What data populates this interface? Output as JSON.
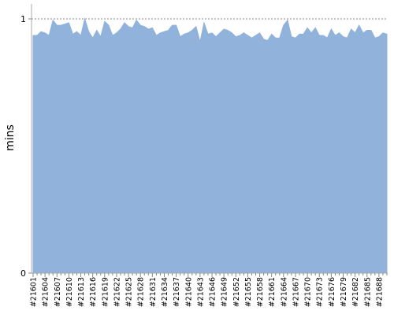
{
  "chart_data": {
    "type": "area",
    "y_label": "mins",
    "categories": [
      "#21601",
      null,
      null,
      "#21604",
      null,
      null,
      "#21607",
      null,
      null,
      "#21610",
      null,
      null,
      "#21613",
      null,
      null,
      "#21616",
      null,
      null,
      "#21619",
      null,
      null,
      "#21622",
      null,
      null,
      "#21625",
      null,
      null,
      "#21628",
      null,
      null,
      "#21631",
      null,
      null,
      "#21634",
      null,
      null,
      "#21637",
      null,
      null,
      "#21640",
      null,
      null,
      "#21643",
      null,
      null,
      "#21646",
      null,
      null,
      "#21649",
      null,
      null,
      "#21652",
      null,
      null,
      "#21655",
      null,
      null,
      "#21658",
      null,
      null,
      "#21661",
      null,
      null,
      "#21664",
      null,
      null,
      "#21667",
      null,
      null,
      "#21670",
      null,
      null,
      "#21673",
      null,
      null,
      "#21676",
      null,
      null,
      "#21679",
      null,
      null,
      "#21682",
      null,
      null,
      "#21685",
      null,
      null,
      "#21688",
      null,
      null
    ],
    "values": [
      0.935,
      0.935,
      0.95,
      0.945,
      0.935,
      0.995,
      0.975,
      0.975,
      0.98,
      0.985,
      0.94,
      0.95,
      0.935,
      1.0,
      0.95,
      0.925,
      0.955,
      0.93,
      0.99,
      0.975,
      0.935,
      0.945,
      0.96,
      0.985,
      0.97,
      0.965,
      0.995,
      0.975,
      0.97,
      0.96,
      0.965,
      0.935,
      0.945,
      0.95,
      0.955,
      0.975,
      0.975,
      0.93,
      0.94,
      0.945,
      0.955,
      0.97,
      0.91,
      0.985,
      0.94,
      0.945,
      0.93,
      0.945,
      0.96,
      0.955,
      0.945,
      0.93,
      0.935,
      0.945,
      0.935,
      0.925,
      0.935,
      0.945,
      0.92,
      0.915,
      0.94,
      0.925,
      0.925,
      0.975,
      0.995,
      0.93,
      0.925,
      0.94,
      0.94,
      0.965,
      0.945,
      0.965,
      0.935,
      0.935,
      0.925,
      0.96,
      0.935,
      0.945,
      0.93,
      0.925,
      0.96,
      0.945,
      0.975,
      0.945,
      0.955,
      0.955,
      0.925,
      0.93,
      0.945,
      0.94
    ],
    "color": "#91b2db",
    "ylim": [
      0,
      1
    ],
    "yticks": [
      0,
      1
    ],
    "grid": true
  }
}
